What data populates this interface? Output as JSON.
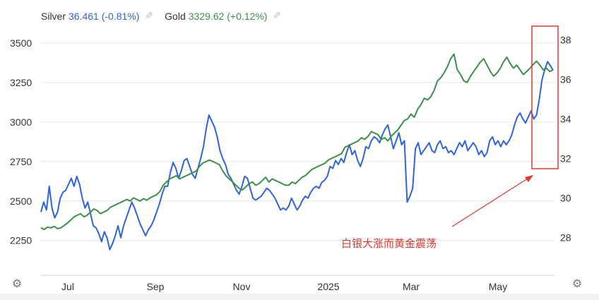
{
  "legend": {
    "silver_name": "Silver",
    "silver_value": "36.461 (-0.81%)",
    "gold_name": "Gold",
    "gold_value": "3329.62 (+0.12%)",
    "pencil_icon": "pencil-icon"
  },
  "settings_icon": "gear-icon",
  "annotation": "白银大涨而黄金震荡",
  "colors": {
    "silver": "#2f64d6",
    "gold": "#3c8f4a",
    "annotation": "#e0392b",
    "grid": "#e6e6e6",
    "axis_text": "#333333"
  },
  "chart_data": {
    "type": "line",
    "x_ticks": [
      "Jul",
      "Sep",
      "Nov",
      "2025",
      "Mar",
      "May"
    ],
    "left_axis": {
      "ticks": [
        2250,
        2500,
        2750,
        3000,
        3250,
        3500
      ],
      "range": [
        2030,
        3620
      ]
    },
    "right_axis": {
      "ticks": [
        28,
        30,
        32,
        34,
        36,
        38
      ],
      "range": [
        26.1,
        38.8
      ]
    },
    "series": [
      {
        "name": "Silver",
        "axis": "right",
        "values": [
          29.3,
          29.8,
          29.4,
          30.6,
          29.5,
          29.0,
          29.3,
          30.0,
          30.3,
          30.4,
          30.7,
          31.0,
          30.6,
          31.1,
          30.7,
          30.0,
          29.5,
          29.8,
          29.2,
          28.6,
          28.5,
          28.2,
          27.8,
          28.3,
          28.0,
          27.4,
          27.7,
          28.1,
          28.6,
          28.0,
          28.6,
          29.0,
          29.4,
          29.8,
          29.5,
          29.1,
          28.7,
          28.4,
          28.1,
          28.4,
          28.6,
          28.9,
          29.3,
          29.7,
          30.2,
          30.6,
          30.6,
          31.3,
          31.8,
          31.5,
          31.0,
          31.4,
          31.9,
          32.0,
          31.6,
          31.2,
          31.0,
          31.5,
          32.0,
          32.6,
          33.5,
          34.2,
          33.9,
          33.6,
          33.1,
          32.4,
          32.0,
          31.7,
          31.2,
          31.0,
          30.7,
          30.4,
          30.2,
          30.6,
          31.1,
          31.0,
          30.5,
          30.0,
          29.9,
          30.0,
          30.1,
          30.3,
          30.5,
          30.4,
          30.2,
          30.0,
          29.7,
          29.4,
          29.5,
          29.4,
          29.6,
          30.0,
          29.7,
          29.4,
          29.6,
          29.9,
          30.1,
          30.0,
          30.3,
          30.5,
          30.6,
          30.5,
          30.8,
          30.9,
          31.1,
          31.6,
          31.5,
          31.9,
          31.7,
          32.0,
          31.8,
          32.3,
          32.7,
          32.2,
          32.4,
          31.9,
          31.6,
          32.0,
          32.6,
          32.5,
          32.9,
          33.1,
          33.0,
          32.8,
          33.2,
          33.5,
          33.7,
          33.1,
          32.5,
          32.9,
          33.3,
          32.7,
          32.9,
          29.8,
          30.1,
          30.5,
          32.5,
          32.8,
          32.2,
          32.4,
          32.6,
          32.8,
          32.4,
          32.3,
          32.7,
          32.9,
          32.5,
          32.6,
          32.3,
          32.4,
          32.2,
          32.5,
          32.8,
          32.6,
          32.9,
          32.4,
          32.6,
          32.8,
          32.6,
          32.2,
          32.4,
          32.1,
          32.3,
          32.9,
          33.1,
          32.7,
          32.9,
          32.6,
          32.9,
          32.7,
          32.9,
          33.2,
          33.7,
          34.1,
          34.3,
          34.0,
          33.8,
          34.1,
          34.4,
          34.0,
          34.2,
          35.0,
          36.0,
          36.5,
          36.9,
          36.7,
          36.461
        ]
      },
      {
        "name": "Gold",
        "axis": "left",
        "values": [
          2330,
          2320,
          2335,
          2330,
          2340,
          2325,
          2330,
          2345,
          2360,
          2380,
          2400,
          2410,
          2420,
          2400,
          2410,
          2430,
          2450,
          2440,
          2420,
          2430,
          2440,
          2460,
          2470,
          2480,
          2490,
          2500,
          2510,
          2500,
          2520,
          2510,
          2500,
          2515,
          2505,
          2520,
          2530,
          2540,
          2560,
          2600,
          2620,
          2640,
          2650,
          2660,
          2640,
          2650,
          2660,
          2670,
          2680,
          2690,
          2720,
          2740,
          2750,
          2760,
          2750,
          2740,
          2730,
          2690,
          2660,
          2640,
          2620,
          2600,
          2580,
          2570,
          2590,
          2610,
          2620,
          2600,
          2610,
          2630,
          2650,
          2620,
          2640,
          2630,
          2620,
          2610,
          2600,
          2600,
          2620,
          2610,
          2630,
          2650,
          2660,
          2680,
          2700,
          2710,
          2720,
          2730,
          2740,
          2760,
          2770,
          2780,
          2790,
          2800,
          2840,
          2850,
          2860,
          2870,
          2880,
          2900,
          2890,
          2910,
          2940,
          2930,
          2920,
          2890,
          2900,
          2880,
          2910,
          2930,
          2950,
          2980,
          3010,
          3020,
          3050,
          3030,
          3080,
          3110,
          3150,
          3140,
          3160,
          3200,
          3260,
          3280,
          3310,
          3350,
          3400,
          3430,
          3330,
          3300,
          3260,
          3250,
          3290,
          3320,
          3350,
          3380,
          3400,
          3360,
          3320,
          3290,
          3310,
          3340,
          3380,
          3410,
          3370,
          3340,
          3360,
          3330,
          3300,
          3320,
          3340,
          3365,
          3385,
          3360,
          3330,
          3340,
          3320,
          3329.62
        ]
      }
    ]
  }
}
